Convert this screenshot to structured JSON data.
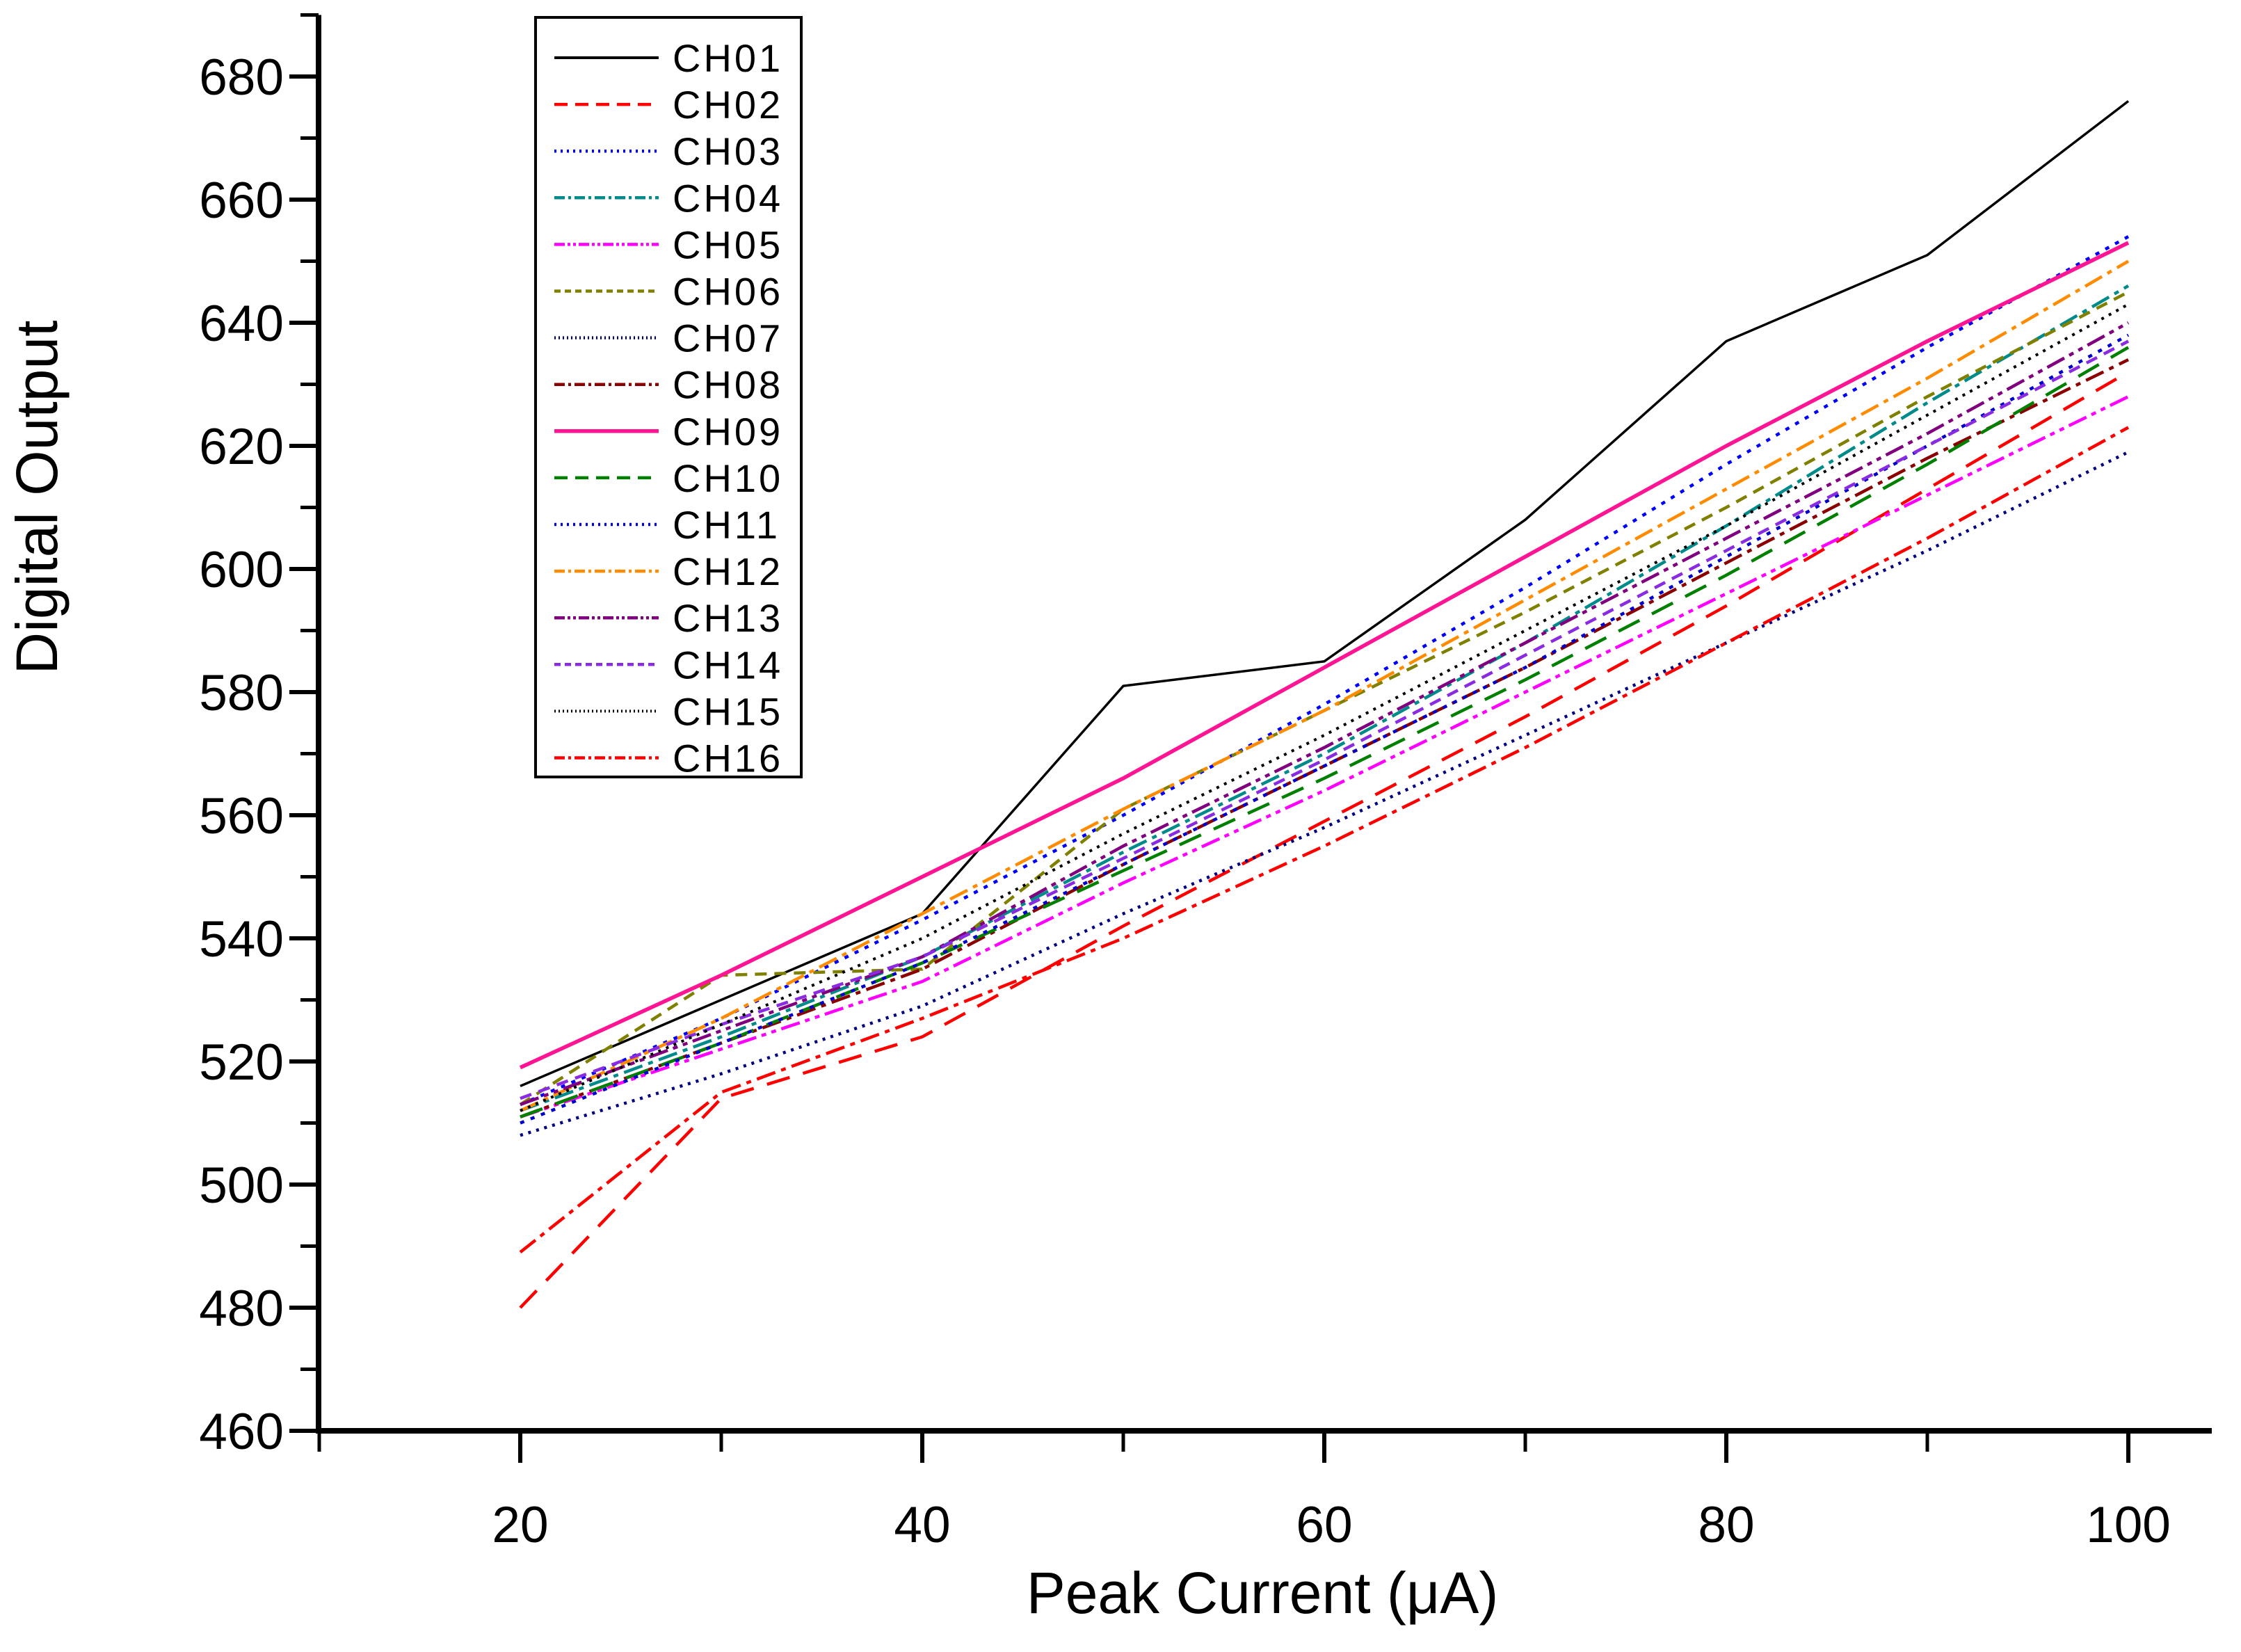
{
  "figure": {
    "background": "#ffffff",
    "axis_color": "#000000",
    "xlabel": "Peak Current (μA)",
    "ylabel": "Digital Output",
    "x_tick_labels": [
      "20",
      "40",
      "60",
      "80",
      "100"
    ],
    "y_tick_labels": [
      "460",
      "480",
      "500",
      "520",
      "540",
      "560",
      "580",
      "600",
      "620",
      "640",
      "660",
      "680"
    ]
  },
  "chart_data": {
    "type": "line",
    "title": "",
    "xlabel": "Peak Current (μA)",
    "ylabel": "Digital Output",
    "x": [
      20,
      30,
      40,
      50,
      60,
      70,
      80,
      90,
      100
    ],
    "xlim": [
      10,
      104
    ],
    "ylim": [
      460,
      690
    ],
    "x_major_ticks": [
      20,
      40,
      60,
      80,
      100
    ],
    "x_minor_ticks": [
      10,
      30,
      50,
      70,
      90
    ],
    "y_major_ticks": [
      460,
      480,
      500,
      520,
      540,
      560,
      580,
      600,
      620,
      640,
      660,
      680
    ],
    "y_minor_ticks": [
      470,
      490,
      510,
      530,
      550,
      570,
      590,
      610,
      630,
      650,
      670,
      690
    ],
    "grid": false,
    "legend_position": "upper-left-inside",
    "series": [
      {
        "name": "CH01",
        "color": "#000000",
        "style": "solid",
        "width": 3.5,
        "values": [
          516,
          530,
          544,
          581,
          585,
          608,
          637,
          651,
          676
        ]
      },
      {
        "name": "CH02",
        "color": "#FF0000",
        "style": "dash",
        "width": 4.5,
        "values": [
          480,
          514,
          524,
          542,
          559,
          576,
          594,
          613,
          632
        ]
      },
      {
        "name": "CH03",
        "color": "#0000FF",
        "style": "dot",
        "width": 4.5,
        "values": [
          513,
          527,
          543,
          560,
          578,
          597,
          617,
          636,
          654
        ]
      },
      {
        "name": "CH04",
        "color": "#008B8B",
        "style": "dash-dot",
        "width": 4.5,
        "values": [
          512,
          524,
          537,
          554,
          570,
          588,
          607,
          627,
          646
        ]
      },
      {
        "name": "CH05",
        "color": "#FF00FF",
        "style": "dash-dot-dot",
        "width": 4.5,
        "values": [
          511,
          522,
          533,
          549,
          564,
          580,
          596,
          612,
          628
        ]
      },
      {
        "name": "CH06",
        "color": "#808000",
        "style": "short-dash",
        "width": 4.5,
        "values": [
          513,
          534,
          535,
          561,
          577,
          593,
          610,
          628,
          645
        ]
      },
      {
        "name": "CH07",
        "color": "#000080",
        "style": "fine-dot",
        "width": 4.5,
        "values": [
          508,
          518,
          529,
          544,
          558,
          573,
          588,
          603,
          619
        ]
      },
      {
        "name": "CH08",
        "color": "#8B0000",
        "style": "dash-dot",
        "width": 4.5,
        "values": [
          511,
          523,
          535,
          552,
          568,
          584,
          601,
          618,
          634
        ]
      },
      {
        "name": "CH09",
        "color": "#FF1493",
        "style": "solid",
        "width": 5.5,
        "values": [
          519,
          534,
          550,
          566,
          584,
          602,
          620,
          637,
          653
        ]
      },
      {
        "name": "CH10",
        "color": "#008000",
        "style": "dash",
        "width": 4.5,
        "values": [
          511,
          523,
          536,
          551,
          566,
          582,
          599,
          617,
          636
        ]
      },
      {
        "name": "CH11",
        "color": "#0000CD",
        "style": "dot",
        "width": 4.5,
        "values": [
          510,
          523,
          536,
          552,
          568,
          584,
          602,
          620,
          638
        ]
      },
      {
        "name": "CH12",
        "color": "#FF8C00",
        "style": "dash-dot",
        "width": 4.5,
        "values": [
          512,
          527,
          544,
          561,
          577,
          595,
          613,
          631,
          650
        ]
      },
      {
        "name": "CH13",
        "color": "#800080",
        "style": "dash-dot-dot",
        "width": 4.5,
        "values": [
          513,
          525,
          537,
          555,
          571,
          588,
          605,
          622,
          640
        ]
      },
      {
        "name": "CH14",
        "color": "#8A2BE2",
        "style": "short-dash",
        "width": 4.5,
        "values": [
          514,
          526,
          537,
          553,
          569,
          586,
          603,
          620,
          637
        ]
      },
      {
        "name": "CH15",
        "color": "#000000",
        "style": "fine-dot",
        "width": 4.0,
        "values": [
          512,
          526,
          540,
          557,
          573,
          590,
          607,
          625,
          643
        ]
      },
      {
        "name": "CH16",
        "color": "#FF0000",
        "style": "dash-dot",
        "width": 4.5,
        "values": [
          489,
          515,
          527,
          540,
          555,
          571,
          588,
          605,
          623
        ]
      }
    ]
  },
  "legend": {
    "entries": [
      "CH01",
      "CH02",
      "CH03",
      "CH04",
      "CH05",
      "CH06",
      "CH07",
      "CH08",
      "CH09",
      "CH10",
      "CH11",
      "CH12",
      "CH13",
      "CH14",
      "CH15",
      "CH16"
    ]
  }
}
